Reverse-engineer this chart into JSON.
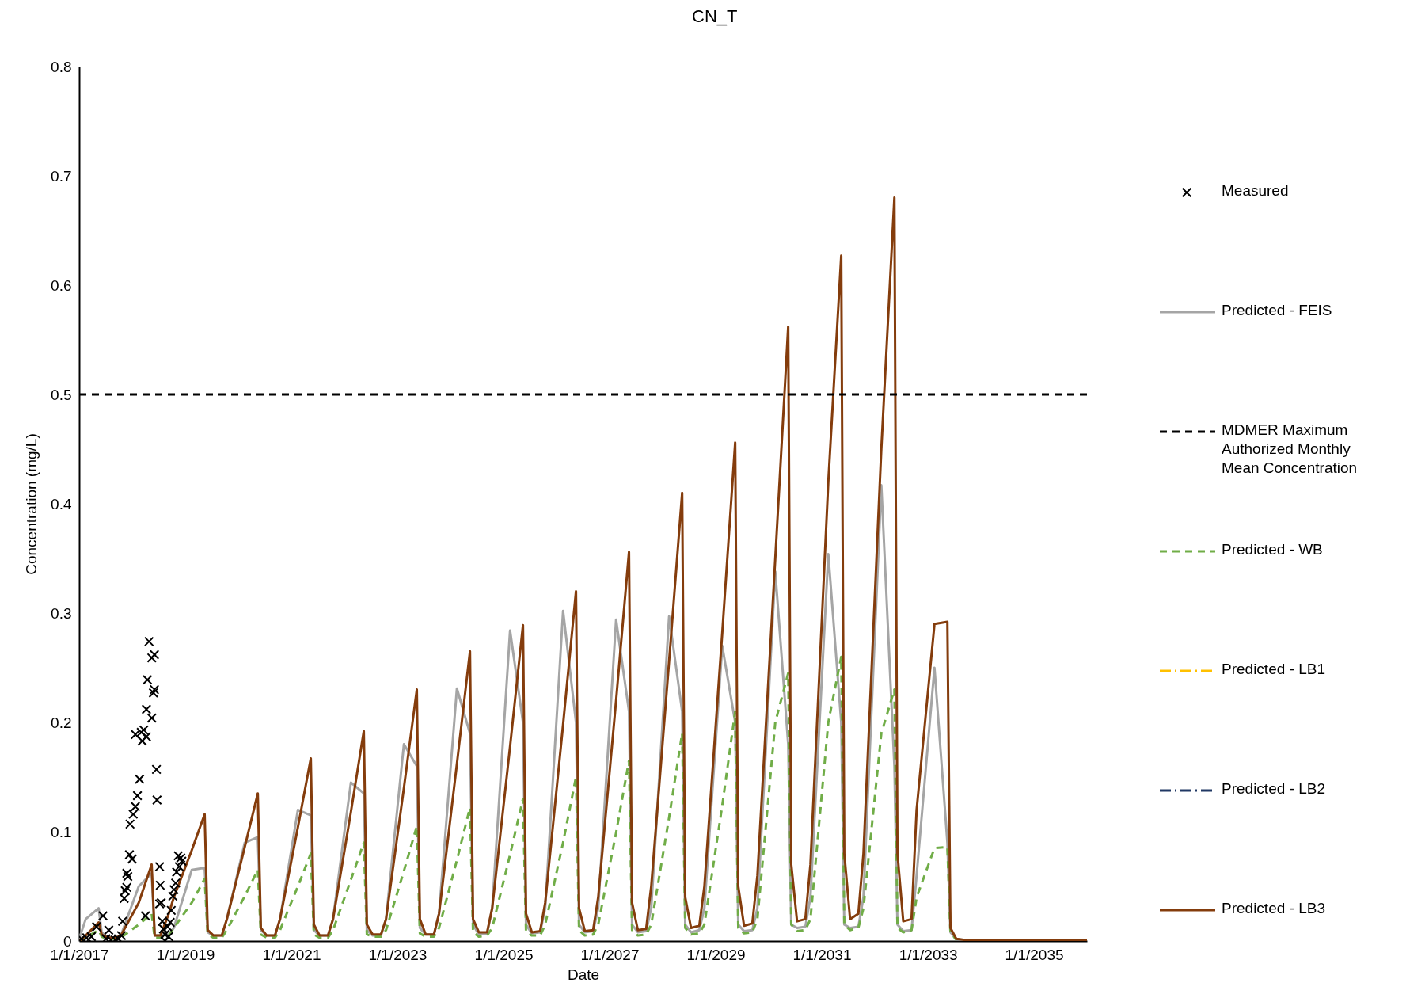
{
  "chart_data": {
    "type": "line",
    "title": "CN_T",
    "xlabel": "Date",
    "ylabel": "Concentration (mg/L)",
    "legend": "right",
    "xlim": [
      "2017-01-01",
      "2036-01-01"
    ],
    "xticks": [
      {
        "value": "2017-01-01",
        "label": "1/1/2017"
      },
      {
        "value": "2019-01-01",
        "label": "1/1/2019"
      },
      {
        "value": "2021-01-01",
        "label": "1/1/2021"
      },
      {
        "value": "2023-01-01",
        "label": "1/1/2023"
      },
      {
        "value": "2025-01-01",
        "label": "1/1/2025"
      },
      {
        "value": "2027-01-01",
        "label": "1/1/2027"
      },
      {
        "value": "2029-01-01",
        "label": "1/1/2029"
      },
      {
        "value": "2031-01-01",
        "label": "1/1/2031"
      },
      {
        "value": "2033-01-01",
        "label": "1/1/2033"
      },
      {
        "value": "2035-01-01",
        "label": "1/1/2035"
      }
    ],
    "ylim": [
      0,
      0.8
    ],
    "yticks": [
      0,
      0.1,
      0.2,
      0.3,
      0.4,
      0.5,
      0.6,
      0.7,
      0.8
    ],
    "ref_lines": [
      {
        "axis": "y",
        "value": 0.5,
        "label": "MDMER Maximum Authorized Monthly Mean Concentration",
        "color": "#000000",
        "line_style": "dashed"
      }
    ],
    "x": [
      "2017-01-01",
      "2017-02-15",
      "2017-05-15",
      "2017-06-05",
      "2017-07-15",
      "2017-09-10",
      "2017-10-15",
      "2018-02-15",
      "2018-05-15",
      "2018-06-05",
      "2018-07-15",
      "2018-09-10",
      "2018-10-15",
      "2019-02-15",
      "2019-05-15",
      "2019-06-05",
      "2019-07-15",
      "2019-09-10",
      "2019-10-15",
      "2020-02-15",
      "2020-05-15",
      "2020-06-05",
      "2020-07-15",
      "2020-09-10",
      "2020-10-15",
      "2021-02-15",
      "2021-05-15",
      "2021-06-05",
      "2021-07-15",
      "2021-09-10",
      "2021-10-15",
      "2022-02-15",
      "2022-05-15",
      "2022-06-05",
      "2022-07-15",
      "2022-09-10",
      "2022-10-15",
      "2023-02-15",
      "2023-05-15",
      "2023-06-05",
      "2023-07-15",
      "2023-09-10",
      "2023-10-15",
      "2024-02-15",
      "2024-05-15",
      "2024-06-05",
      "2024-07-15",
      "2024-09-10",
      "2024-10-15",
      "2025-02-15",
      "2025-05-15",
      "2025-06-05",
      "2025-07-15",
      "2025-09-10",
      "2025-10-15",
      "2026-02-15",
      "2026-05-15",
      "2026-06-05",
      "2026-07-15",
      "2026-09-10",
      "2026-10-15",
      "2027-02-15",
      "2027-05-15",
      "2027-06-05",
      "2027-07-15",
      "2027-09-10",
      "2027-10-15",
      "2028-02-15",
      "2028-05-15",
      "2028-06-05",
      "2028-07-15",
      "2028-09-10",
      "2028-10-15",
      "2029-02-15",
      "2029-05-15",
      "2029-06-05",
      "2029-07-15",
      "2029-09-10",
      "2029-10-15",
      "2030-02-15",
      "2030-05-15",
      "2030-06-05",
      "2030-07-15",
      "2030-09-10",
      "2030-10-15",
      "2031-02-15",
      "2031-05-15",
      "2031-06-05",
      "2031-07-15",
      "2031-09-10",
      "2031-10-15",
      "2032-02-15",
      "2032-05-15",
      "2032-06-05",
      "2032-07-15",
      "2032-09-10",
      "2032-10-15",
      "2033-02-15",
      "2033-05-15",
      "2033-06-05",
      "2033-07-15",
      "2033-09-10",
      "2033-10-15",
      "2034-06-01",
      "2036-01-01"
    ],
    "series": [
      {
        "name": "Measured",
        "type": "scatter",
        "marker": "cross",
        "color": "#000000",
        "x": [
          "2017-01-17",
          "2017-02-22",
          "2017-03-26",
          "2017-05-01",
          "2017-06-14",
          "2017-07-24",
          "2017-07-05",
          "2017-08-08",
          "2017-09-06",
          "2017-09-28",
          "2017-10-19",
          "2017-10-27",
          "2017-11-07",
          "2017-11-14",
          "2017-11-25",
          "2017-12-02",
          "2017-11-25",
          "2017-12-13",
          "2018-01-01",
          "2017-12-17",
          "2018-01-08",
          "2018-01-23",
          "2018-02-06",
          "2018-02-21",
          "2018-01-23",
          "2018-03-04",
          "2018-03-22",
          "2018-03-11",
          "2018-04-09",
          "2018-04-09",
          "2018-05-16",
          "2018-04-16",
          "2018-05-27",
          "2018-06-03",
          "2018-05-16",
          "2018-06-03",
          "2018-04-27",
          "2018-06-17",
          "2018-06-21",
          "2018-04-02",
          "2018-07-09",
          "2018-07-13",
          "2018-07-20",
          "2018-07-09",
          "2018-07-27",
          "2018-08-04",
          "2018-08-15",
          "2018-09-02",
          "2018-09-20",
          "2018-09-27",
          "2018-10-08",
          "2018-10-16",
          "2018-10-27",
          "2018-11-03",
          "2018-11-14",
          "2018-12-02",
          "2018-12-09",
          "2018-11-21",
          "2018-08-15",
          "2018-09-09"
        ],
        "values": [
          0.002,
          0.003,
          0.004,
          0.013,
          0.023,
          0.01,
          0.002,
          0.001,
          0.001,
          0.002,
          0.005,
          0.018,
          0.039,
          0.046,
          0.049,
          0.059,
          0.062,
          0.079,
          0.075,
          0.107,
          0.116,
          0.123,
          0.133,
          0.148,
          0.189,
          0.191,
          0.193,
          0.183,
          0.187,
          0.212,
          0.204,
          0.239,
          0.227,
          0.23,
          0.259,
          0.262,
          0.274,
          0.157,
          0.129,
          0.023,
          0.068,
          0.051,
          0.035,
          0.034,
          0.018,
          0.011,
          0.006,
          0.013,
          0.017,
          0.028,
          0.041,
          0.047,
          0.053,
          0.063,
          0.078,
          0.076,
          0.073,
          0.068,
          0.0,
          0.004
        ]
      },
      {
        "name": "Predicted - FEIS",
        "color": "#a5a5a5",
        "values": [
          0.002,
          0.02,
          0.03,
          0.008,
          0.003,
          0.003,
          0.005,
          0.05,
          0.062,
          0.005,
          0.005,
          0.006,
          0.012,
          0.065,
          0.067,
          0.008,
          0.005,
          0.005,
          0.02,
          0.09,
          0.095,
          0.01,
          0.005,
          0.005,
          0.02,
          0.12,
          0.115,
          0.01,
          0.005,
          0.005,
          0.02,
          0.145,
          0.135,
          0.01,
          0.005,
          0.005,
          0.02,
          0.18,
          0.16,
          0.012,
          0.006,
          0.006,
          0.025,
          0.231,
          0.19,
          0.015,
          0.006,
          0.007,
          0.03,
          0.284,
          0.2,
          0.015,
          0.007,
          0.008,
          0.03,
          0.302,
          0.2,
          0.015,
          0.008,
          0.009,
          0.03,
          0.294,
          0.21,
          0.015,
          0.008,
          0.009,
          0.03,
          0.297,
          0.21,
          0.015,
          0.008,
          0.01,
          0.03,
          0.27,
          0.2,
          0.015,
          0.009,
          0.01,
          0.03,
          0.338,
          0.18,
          0.015,
          0.012,
          0.013,
          0.04,
          0.354,
          0.2,
          0.015,
          0.012,
          0.013,
          0.04,
          0.417,
          0.16,
          0.015,
          0.009,
          0.01,
          0.06,
          0.25,
          0.09,
          0.008,
          0.002,
          0.001,
          0.001,
          0.001,
          0.001
        ]
      },
      {
        "name": "Predicted - WB",
        "color": "#70ad47",
        "line_style": "dashed",
        "values": [
          0.0,
          0.003,
          0.01,
          0.004,
          0.002,
          0.002,
          0.003,
          0.015,
          0.025,
          0.003,
          0.003,
          0.005,
          0.012,
          0.035,
          0.057,
          0.006,
          0.003,
          0.003,
          0.01,
          0.041,
          0.065,
          0.006,
          0.003,
          0.003,
          0.01,
          0.05,
          0.08,
          0.006,
          0.003,
          0.003,
          0.01,
          0.056,
          0.09,
          0.006,
          0.004,
          0.004,
          0.01,
          0.064,
          0.105,
          0.007,
          0.004,
          0.004,
          0.012,
          0.074,
          0.122,
          0.008,
          0.004,
          0.005,
          0.012,
          0.079,
          0.13,
          0.008,
          0.005,
          0.005,
          0.015,
          0.09,
          0.15,
          0.01,
          0.005,
          0.006,
          0.015,
          0.099,
          0.165,
          0.01,
          0.005,
          0.006,
          0.015,
          0.113,
          0.19,
          0.012,
          0.006,
          0.007,
          0.015,
          0.124,
          0.21,
          0.012,
          0.007,
          0.008,
          0.02,
          0.2,
          0.245,
          0.015,
          0.009,
          0.01,
          0.02,
          0.2,
          0.26,
          0.015,
          0.01,
          0.012,
          0.03,
          0.19,
          0.23,
          0.012,
          0.008,
          0.01,
          0.04,
          0.085,
          0.086,
          0.008,
          0.001,
          null,
          null,
          null,
          null
        ]
      },
      {
        "name": "Predicted - LB1",
        "color": "#ffc000",
        "line_style": "dashdot",
        "values": [
          null,
          null,
          null,
          null,
          null,
          null,
          null,
          null,
          null,
          null,
          null,
          null,
          null,
          null,
          null,
          null,
          null,
          null,
          null,
          null,
          null,
          null,
          null,
          null,
          null,
          null,
          null,
          null,
          null,
          null,
          null,
          null,
          null,
          null,
          null,
          null,
          null,
          null,
          null,
          null,
          null,
          null,
          null,
          null,
          null,
          null,
          null,
          null,
          null,
          null,
          null,
          null,
          null,
          null,
          null,
          null,
          null,
          null,
          null,
          null,
          null,
          null,
          null,
          null,
          null,
          null,
          null,
          null,
          null,
          null,
          null,
          null,
          null,
          null,
          null,
          null,
          null,
          null,
          null,
          null,
          null,
          null,
          null,
          null,
          null,
          null,
          null,
          null,
          null,
          null,
          null,
          null,
          null,
          null,
          null,
          null,
          null,
          null,
          null,
          null,
          null,
          null,
          null,
          null,
          null
        ]
      },
      {
        "name": "Predicted - LB2",
        "color": "#203864",
        "line_style": "dashdot",
        "values": [
          null,
          null,
          null,
          null,
          null,
          null,
          null,
          null,
          null,
          null,
          null,
          null,
          null,
          null,
          null,
          null,
          null,
          null,
          null,
          null,
          null,
          null,
          null,
          null,
          null,
          null,
          null,
          null,
          null,
          null,
          null,
          null,
          null,
          null,
          null,
          null,
          null,
          null,
          null,
          null,
          null,
          null,
          null,
          null,
          null,
          null,
          null,
          null,
          null,
          null,
          null,
          null,
          null,
          null,
          null,
          null,
          null,
          null,
          null,
          null,
          null,
          null,
          null,
          null,
          null,
          null,
          null,
          null,
          null,
          null,
          null,
          null,
          null,
          null,
          null,
          null,
          null,
          null,
          null,
          null,
          null,
          null,
          null,
          null,
          null,
          null,
          null,
          null,
          null,
          null,
          null,
          null,
          null,
          null,
          null,
          null,
          null,
          null,
          null,
          null,
          null,
          null,
          null,
          null,
          null
        ]
      },
      {
        "name": "Predicted - LB3",
        "color": "#843c0c",
        "values": [
          0.0,
          0.005,
          0.017,
          0.006,
          0.003,
          0.003,
          0.005,
          0.035,
          0.07,
          0.005,
          0.005,
          0.025,
          0.04,
          0.083,
          0.116,
          0.01,
          0.005,
          0.005,
          0.02,
          0.086,
          0.135,
          0.012,
          0.005,
          0.005,
          0.02,
          0.104,
          0.167,
          0.015,
          0.005,
          0.005,
          0.02,
          0.118,
          0.192,
          0.015,
          0.006,
          0.006,
          0.02,
          0.14,
          0.23,
          0.02,
          0.006,
          0.006,
          0.025,
          0.162,
          0.265,
          0.02,
          0.008,
          0.008,
          0.03,
          0.178,
          0.289,
          0.025,
          0.008,
          0.009,
          0.035,
          0.198,
          0.32,
          0.03,
          0.009,
          0.01,
          0.04,
          0.22,
          0.356,
          0.035,
          0.01,
          0.011,
          0.05,
          0.256,
          0.41,
          0.04,
          0.012,
          0.014,
          0.05,
          0.282,
          0.456,
          0.05,
          0.014,
          0.016,
          0.06,
          0.35,
          0.562,
          0.07,
          0.018,
          0.02,
          0.07,
          0.42,
          0.627,
          0.08,
          0.02,
          0.025,
          0.08,
          0.45,
          0.68,
          0.08,
          0.018,
          0.02,
          0.12,
          0.29,
          0.292,
          0.012,
          0.002,
          0.001,
          0.001,
          0.001,
          0.001
        ]
      }
    ]
  }
}
